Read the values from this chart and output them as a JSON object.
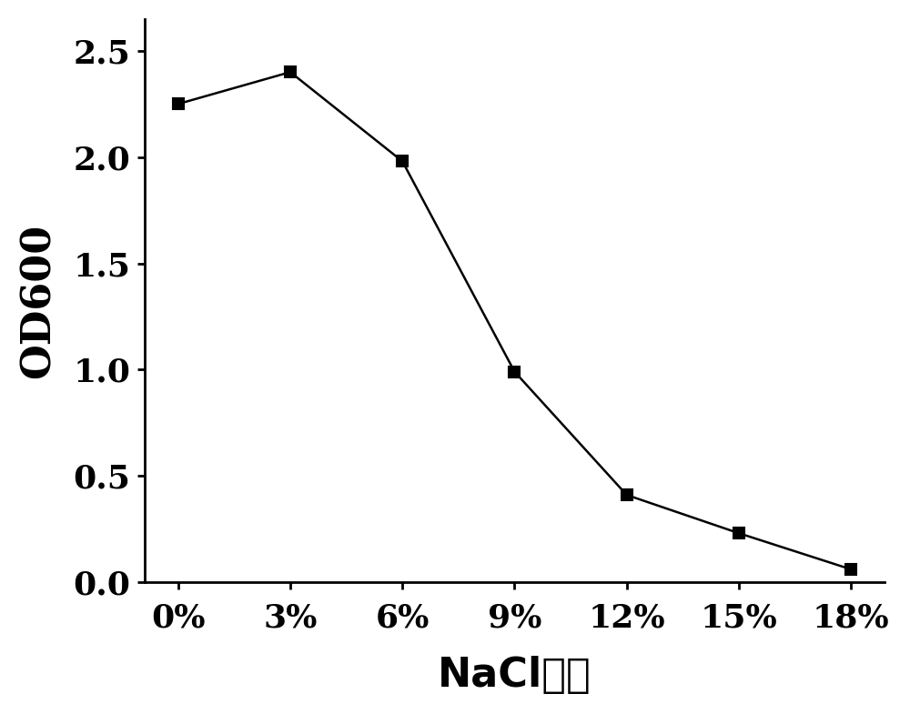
{
  "x_labels": [
    "0%",
    "3%",
    "6%",
    "9%",
    "12%",
    "15%",
    "18%"
  ],
  "x_values": [
    0,
    1,
    2,
    3,
    4,
    5,
    6
  ],
  "y_values": [
    2.25,
    2.4,
    1.98,
    0.99,
    0.41,
    0.23,
    0.06
  ],
  "xlabel": "NaCl浓度",
  "ylabel": "OD600",
  "ylim": [
    0,
    2.65
  ],
  "yticks": [
    0.0,
    0.5,
    1.0,
    1.5,
    2.0,
    2.5
  ],
  "line_color": "#000000",
  "marker": "s",
  "marker_size": 8,
  "marker_facecolor": "#000000",
  "marker_edgecolor": "#000000",
  "line_width": 1.8,
  "label_fontsize": 32,
  "tick_fontsize": 26,
  "background_color": "#ffffff"
}
